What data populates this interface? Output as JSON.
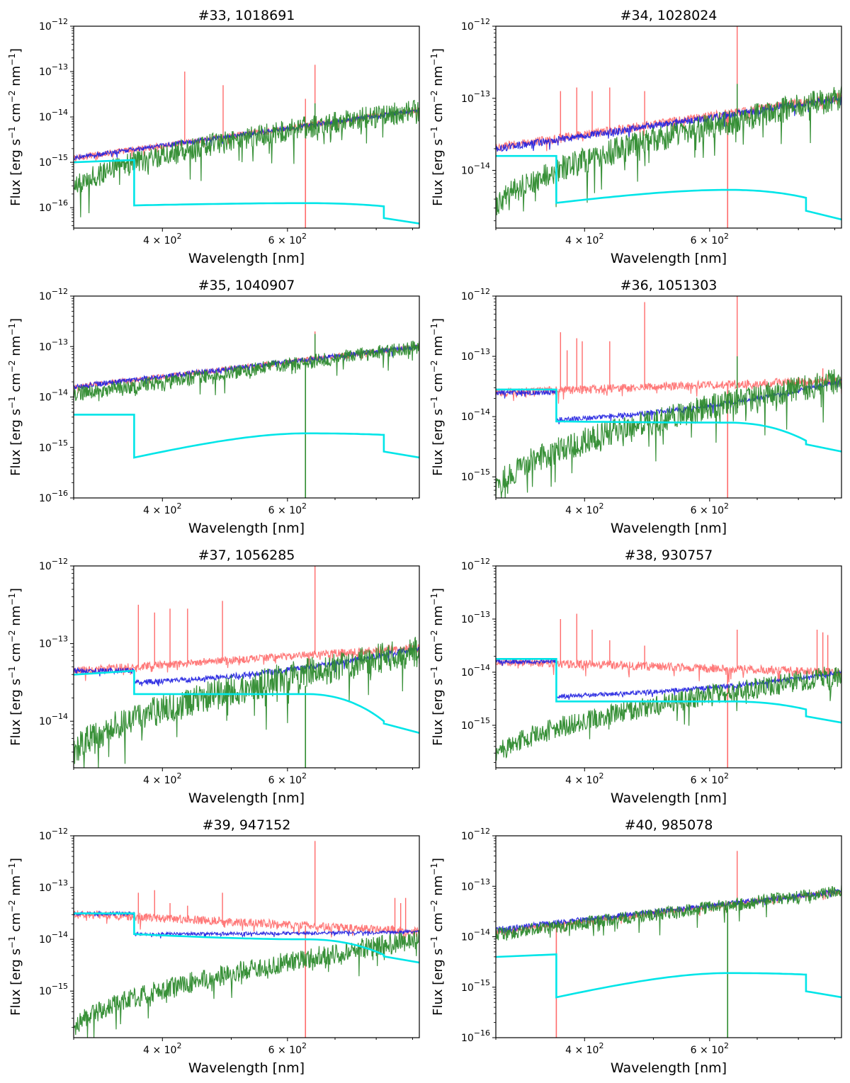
{
  "chart_data": [
    {
      "type": "line",
      "title": "#33, 1018691",
      "xlabel": "Wavelength [nm]",
      "ylabel": "Flux [erg s$^{-1}$ cm$^{-2}$ nm$^{-1}$]",
      "xscale": "log",
      "yscale": "log",
      "xlim": [
        300,
        920
      ],
      "ylim_exp": [
        -16.45,
        -12
      ],
      "ytick_exponents": [
        -16,
        -15,
        -14,
        -13,
        -12
      ],
      "xtick_labels": [
        "4 × 10^2",
        "6 × 10^2"
      ],
      "series": [
        {
          "color": "#ff6b6b",
          "level": [
            -14.9,
            -13.85
          ],
          "noise": 0.07,
          "lines": [
            [
              430,
              -13.0
            ],
            [
              487,
              -13.3
            ],
            [
              636,
              -13.6
            ],
            [
              656,
              -12.85
            ]
          ],
          "dip": [
            636,
            -16.45
          ]
        },
        {
          "color": "#1f1fe0",
          "level": [
            -14.9,
            -13.85
          ],
          "noise": 0.05
        },
        {
          "color": "#2e8b2e",
          "level": [
            -15.65,
            -13.85
          ],
          "noise": 0.25,
          "green": true,
          "lines": [
            [
              656,
              -13.7
            ]
          ]
        },
        {
          "color": "#00e5e8",
          "model": true,
          "uv": [
            -15.0,
            -14.95
          ],
          "vis": [
            -15.95,
            -15.9,
            -15.97
          ],
          "ir": -16.35
        }
      ]
    },
    {
      "type": "line",
      "title": "#34, 1028024",
      "xlabel": "Wavelength [nm]",
      "ylabel": "Flux [erg s$^{-1}$ cm$^{-2}$ nm$^{-1}$]",
      "xscale": "log",
      "yscale": "log",
      "xlim": [
        300,
        920
      ],
      "ylim_exp": [
        -14.8,
        -12
      ],
      "ytick_exponents": [
        -14,
        -13,
        -12
      ],
      "xtick_labels": [
        "4 × 10^2",
        "6 × 10^2"
      ],
      "series": [
        {
          "color": "#ff6b6b",
          "level": [
            -13.68,
            -12.98
          ],
          "noise": 0.06,
          "lines": [
            [
              370,
              -12.9
            ],
            [
              390,
              -12.85
            ],
            [
              410,
              -12.9
            ],
            [
              434,
              -12.85
            ],
            [
              486,
              -12.9
            ],
            [
              656,
              -12.0
            ]
          ],
          "dip": [
            636,
            -14.8
          ]
        },
        {
          "color": "#1f1fe0",
          "level": [
            -13.7,
            -13.0
          ],
          "noise": 0.05
        },
        {
          "color": "#2e8b2e",
          "level": [
            -14.55,
            -13.0
          ],
          "noise": 0.18,
          "green": true,
          "lines": [
            [
              656,
              -12.8
            ]
          ]
        },
        {
          "color": "#00e5e8",
          "model": true,
          "uv": [
            -13.8,
            -13.8
          ],
          "vis": [
            -14.45,
            -14.27,
            -14.38
          ],
          "ir": -14.68
        }
      ]
    },
    {
      "type": "line",
      "title": "#35, 1040907",
      "xlabel": "Wavelength [nm]",
      "ylabel": "Flux [erg s$^{-1}$ cm$^{-2}$ nm$^{-1}$]",
      "xscale": "log",
      "yscale": "log",
      "xlim": [
        300,
        920
      ],
      "ylim_exp": [
        -16,
        -12
      ],
      "ytick_exponents": [
        -16,
        -15,
        -14,
        -13,
        -12
      ],
      "xtick_labels": [
        "4 × 10^2",
        "6 × 10^2"
      ],
      "series": [
        {
          "color": "#ff6b6b",
          "level": [
            -13.8,
            -13.0
          ],
          "noise": 0.05,
          "lines": [
            [
              656,
              -12.7
            ]
          ]
        },
        {
          "color": "#1f1fe0",
          "level": [
            -13.8,
            -13.0
          ],
          "noise": 0.05
        },
        {
          "color": "#2e8b2e",
          "level": [
            -13.95,
            -13.0
          ],
          "noise": 0.14,
          "green": true,
          "flat": true,
          "lines": [
            [
              656,
              -12.75
            ]
          ],
          "dip": [
            636,
            -16
          ]
        },
        {
          "color": "#00e5e8",
          "model": true,
          "uv": [
            -14.35,
            -14.35
          ],
          "vis": [
            -15.2,
            -14.72,
            -14.75
          ],
          "ir": -15.2
        }
      ]
    },
    {
      "type": "line",
      "title": "#36, 1051303",
      "xlabel": "Wavelength [nm]",
      "ylabel": "Flux [erg s$^{-1}$ cm$^{-2}$ nm$^{-1}$]",
      "xscale": "log",
      "yscale": "log",
      "xlim": [
        300,
        920
      ],
      "ylim_exp": [
        -15.35,
        -12
      ],
      "ytick_exponents": [
        -15,
        -14,
        -13,
        -12
      ],
      "xtick_labels": [
        "4 × 10^2",
        "6 × 10^2"
      ],
      "series": [
        {
          "color": "#ff6b6b",
          "level": [
            -13.6,
            -13.4
          ],
          "noise": 0.07,
          "lines": [
            [
              370,
              -12.6
            ],
            [
              378,
              -12.9
            ],
            [
              390,
              -12.7
            ],
            [
              397,
              -12.75
            ],
            [
              434,
              -12.75
            ],
            [
              486,
              -12.1
            ],
            [
              656,
              -12.0
            ],
            [
              850,
              -13.3
            ],
            [
              866,
              -13.2
            ],
            [
              880,
              -13.3
            ]
          ],
          "dip": [
            636,
            -15.35
          ]
        },
        {
          "color": "#1f1fe0",
          "level": [
            -13.6,
            -13.4
          ],
          "noise": 0.04,
          "bluedrop": [
            -14.05,
            -13.75
          ]
        },
        {
          "color": "#2e8b2e",
          "level": [
            -15.2,
            -13.4
          ],
          "noise": 0.22,
          "green": true,
          "lines": [
            [
              656,
              -13.0
            ]
          ]
        },
        {
          "color": "#00e5e8",
          "model": true,
          "uv": [
            -13.55,
            -13.55
          ],
          "vis": [
            -14.08,
            -14.1,
            -14.4
          ],
          "ir": -14.58
        }
      ]
    },
    {
      "type": "line",
      "title": "#37, 1056285",
      "xlabel": "Wavelength [nm]",
      "ylabel": "Flux [erg s$^{-1}$ cm$^{-2}$ nm$^{-1}$]",
      "xscale": "log",
      "yscale": "log",
      "xlim": [
        300,
        920
      ],
      "ylim_exp": [
        -14.6,
        -12
      ],
      "ytick_exponents": [
        -14,
        -13,
        -12
      ],
      "xtick_labels": [
        "4 × 10^2",
        "6 × 10^2"
      ],
      "series": [
        {
          "color": "#ff6b6b",
          "level": [
            -13.35,
            -13.05
          ],
          "noise": 0.05,
          "lines": [
            [
              370,
              -12.5
            ],
            [
              390,
              -12.6
            ],
            [
              410,
              -12.55
            ],
            [
              434,
              -12.55
            ],
            [
              486,
              -12.45
            ],
            [
              656,
              -12.0
            ]
          ]
        },
        {
          "color": "#1f1fe0",
          "level": [
            -13.35,
            -13.05
          ],
          "noise": 0.035,
          "bluedrop": [
            -13.5,
            -13.35
          ]
        },
        {
          "color": "#2e8b2e",
          "level": [
            -14.45,
            -13.1
          ],
          "noise": 0.2,
          "green": true,
          "dip": [
            636,
            -14.6
          ]
        },
        {
          "color": "#00e5e8",
          "model": true,
          "uv": [
            -13.4,
            -13.35
          ],
          "vis": [
            -13.65,
            -13.65,
            -14.0
          ],
          "ir": -14.15
        }
      ]
    },
    {
      "type": "line",
      "title": "#38, 930757",
      "xlabel": "Wavelength [nm]",
      "ylabel": "Flux [erg s$^{-1}$ cm$^{-2}$ nm$^{-1}$]",
      "xscale": "log",
      "yscale": "log",
      "xlim": [
        300,
        920
      ],
      "ylim_exp": [
        -15.8,
        -12
      ],
      "ytick_exponents": [
        -15,
        -14,
        -13,
        -12
      ],
      "xtick_labels": [
        "4 × 10^2",
        "6 × 10^2"
      ],
      "series": [
        {
          "color": "#ff6b6b",
          "level": [
            -13.8,
            -14.0
          ],
          "noise": 0.08,
          "lines": [
            [
              370,
              -13.0
            ],
            [
              390,
              -12.9
            ],
            [
              410,
              -13.2
            ],
            [
              434,
              -13.4
            ],
            [
              486,
              -13.5
            ],
            [
              656,
              -13.2
            ],
            [
              850,
              -13.2
            ],
            [
              866,
              -13.25
            ],
            [
              880,
              -13.3
            ]
          ],
          "dip": [
            636,
            -15.8
          ]
        },
        {
          "color": "#1f1fe0",
          "level": [
            -13.8,
            -14.0
          ],
          "noise": 0.04,
          "bluedrop": [
            -14.45,
            -14.2
          ]
        },
        {
          "color": "#2e8b2e",
          "level": [
            -15.6,
            -14.05
          ],
          "noise": 0.2,
          "green": true
        },
        {
          "color": "#00e5e8",
          "model": true,
          "uv": [
            -13.75,
            -13.75
          ],
          "vis": [
            -14.55,
            -14.55,
            -14.7
          ],
          "ir": -14.95
        }
      ]
    },
    {
      "type": "line",
      "title": "#39, 947152",
      "xlabel": "Wavelength [nm]",
      "ylabel": "Flux [erg s$^{-1}$ cm$^{-2}$ nm$^{-1}$]",
      "xscale": "log",
      "yscale": "log",
      "xlim": [
        300,
        920
      ],
      "ylim_exp": [
        -15.9,
        -12
      ],
      "ytick_exponents": [
        -15,
        -14,
        -13,
        -12
      ],
      "xtick_labels": [
        "4 × 10^2",
        "6 × 10^2"
      ],
      "series": [
        {
          "color": "#ff6b6b",
          "level": [
            -13.5,
            -13.85
          ],
          "noise": 0.08,
          "lines": [
            [
              370,
              -13.1
            ],
            [
              390,
              -13.05
            ],
            [
              410,
              -13.3
            ],
            [
              434,
              -13.35
            ],
            [
              486,
              -13.1
            ],
            [
              656,
              -12.1
            ],
            [
              850,
              -13.2
            ],
            [
              866,
              -13.3
            ],
            [
              880,
              -13.2
            ]
          ],
          "dip": [
            636,
            -15.9
          ]
        },
        {
          "color": "#1f1fe0",
          "level": [
            -13.5,
            -13.85
          ],
          "noise": 0.03,
          "bluedrop": [
            -13.9,
            -13.85
          ]
        },
        {
          "color": "#2e8b2e",
          "level": [
            -15.75,
            -14.0
          ],
          "noise": 0.2,
          "green": true
        },
        {
          "color": "#00e5e8",
          "model": true,
          "uv": [
            -13.5,
            -13.5
          ],
          "vis": [
            -13.9,
            -14.0,
            -14.3
          ],
          "ir": -14.45
        }
      ]
    },
    {
      "type": "line",
      "title": "#40, 985078",
      "xlabel": "Wavelength [nm]",
      "ylabel": "Flux [erg s$^{-1}$ cm$^{-2}$ nm$^{-1}$]",
      "xscale": "log",
      "yscale": "log",
      "xlim": [
        300,
        920
      ],
      "ylim_exp": [
        -16,
        -12
      ],
      "ytick_exponents": [
        -16,
        -15,
        -14,
        -13,
        -12
      ],
      "xtick_labels": [
        "4 × 10^2",
        "6 × 10^2"
      ],
      "series": [
        {
          "color": "#ff6b6b",
          "level": [
            -13.9,
            -13.1
          ],
          "noise": 0.05,
          "lines": [
            [
              656,
              -12.3
            ]
          ],
          "dip": [
            365,
            -16
          ]
        },
        {
          "color": "#1f1fe0",
          "level": [
            -13.85,
            -13.1
          ],
          "noise": 0.05
        },
        {
          "color": "#2e8b2e",
          "level": [
            -13.95,
            -13.1
          ],
          "noise": 0.13,
          "green": true,
          "flat": true,
          "dip": [
            636,
            -16
          ]
        },
        {
          "color": "#00e5e8",
          "model": true,
          "uv": [
            -14.4,
            -14.35
          ],
          "vis": [
            -15.2,
            -14.72,
            -14.75
          ],
          "ir": -15.2
        }
      ]
    }
  ]
}
